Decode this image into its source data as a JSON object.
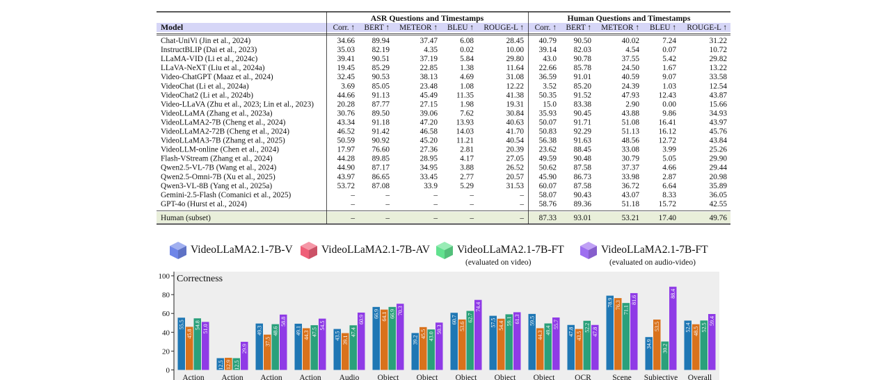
{
  "table": {
    "group_headers": [
      "ASR Questions and Timestamps",
      "Human Questions and Timestamps"
    ],
    "model_header": "Model",
    "metric_headers": [
      "Corr. ↑",
      "BERT ↑",
      "METEOR ↑",
      "BLEU ↑",
      "ROUGE-L ↑",
      "Corr. ↑",
      "BERT ↑",
      "METEOR ↑",
      "BLEU ↑",
      "ROUGE-L ↑"
    ],
    "rows": [
      {
        "model": "Chat-UniVi (Jin et al., 2024)",
        "values": [
          "34.66",
          "89.94",
          "37.47",
          "6.08",
          "28.45",
          "40.79",
          "90.50",
          "40.02",
          "7.24",
          "31.22"
        ]
      },
      {
        "model": "InstructBLIP (Dai et al., 2023)",
        "values": [
          "35.03",
          "82.19",
          "4.35",
          "0.02",
          "10.00",
          "39.14",
          "82.03",
          "4.54",
          "0.07",
          "10.72"
        ]
      },
      {
        "model": "LLaMA-VID (Li et al., 2024c)",
        "values": [
          "39.41",
          "90.51",
          "37.19",
          "5.84",
          "29.80",
          "43.0",
          "90.78",
          "37.55",
          "5.42",
          "29.82"
        ]
      },
      {
        "model": "LLaVA-NeXT (Liu et al., 2024a)",
        "values": [
          "19.45",
          "85.29",
          "22.85",
          "1.38",
          "11.64",
          "22.66",
          "85.78",
          "24.50",
          "1.67",
          "13.22"
        ]
      },
      {
        "model": "Video-ChatGPT (Maaz et al., 2024)",
        "values": [
          "32.45",
          "90.53",
          "38.13",
          "4.69",
          "31.08",
          "36.59",
          "91.01",
          "40.59",
          "9.07",
          "33.58"
        ]
      },
      {
        "model": "VideoChat (Li et al., 2024a)",
        "values": [
          "3.69",
          "85.05",
          "23.48",
          "1.08",
          "12.22",
          "3.52",
          "85.20",
          "24.39",
          "1.03",
          "12.54"
        ]
      },
      {
        "model": "VideoChat2 (Li et al., 2024b)",
        "values": [
          "44.66",
          "91.13",
          "45.49",
          "11.35",
          "41.38",
          "50.35",
          "91.52",
          "47.93",
          "12.43",
          "43.87"
        ]
      },
      {
        "model": "Video-LLaVA (Zhu et al., 2023; Lin et al., 2023)",
        "values": [
          "20.28",
          "87.77",
          "27.15",
          "1.98",
          "19.31",
          "15.0",
          "83.38",
          "2.90",
          "0.00",
          "15.66"
        ]
      },
      {
        "model": "VideoLLaMA (Zhang et al., 2023a)",
        "values": [
          "30.76",
          "89.50",
          "39.06",
          "7.62",
          "30.84",
          "35.93",
          "90.45",
          "43.88",
          "9.86",
          "34.93"
        ]
      },
      {
        "model": "VideoLLaMA2-7B (Cheng et al., 2024)",
        "values": [
          "43.34",
          "91.18",
          "47.20",
          "13.93",
          "40.63",
          "50.07",
          "91.71",
          "51.08",
          "16.41",
          "43.97"
        ]
      },
      {
        "model": "VideoLLaMA2-72B (Cheng et al., 2024)",
        "values": [
          "46.52",
          "91.42",
          "46.58",
          "14.03",
          "41.70",
          "50.83",
          "92.29",
          "51.13",
          "16.12",
          "45.76"
        ]
      },
      {
        "model": "VideoLLaMA3-7B (Zhang et al., 2025)",
        "values": [
          "50.59",
          "90.92",
          "45.20",
          "11.21",
          "40.54",
          "56.38",
          "91.63",
          "48.56",
          "12.72",
          "43.84"
        ]
      },
      {
        "model": "VideoLLM-online (Chen et al., 2024)",
        "values": [
          "17.97",
          "76.60",
          "27.36",
          "2.81",
          "20.39",
          "23.62",
          "88.45",
          "33.08",
          "3.99",
          "25.26"
        ]
      },
      {
        "model": "Flash-VStream (Zhang et al., 2024)",
        "values": [
          "44.28",
          "89.85",
          "28.95",
          "4.17",
          "27.05",
          "49.59",
          "90.48",
          "30.79",
          "5.05",
          "29.90"
        ]
      },
      {
        "model": "Qwen2.5-VL-7B (Wang et al., 2024)",
        "values": [
          "44.90",
          "87.17",
          "34.95",
          "3.88",
          "26.52",
          "50.62",
          "87.58",
          "37.37",
          "4.66",
          "29.44"
        ]
      },
      {
        "model": "Qwen2.5-Omni-7B (Xu et al., 2025)",
        "values": [
          "43.97",
          "86.65",
          "33.45",
          "2.77",
          "20.57",
          "45.90",
          "86.73",
          "33.98",
          "2.87",
          "20.98"
        ]
      },
      {
        "model": "Qwen3-VL-8B (Yang et al., 2025a)",
        "values": [
          "53.72",
          "87.08",
          "33.9",
          "5.29",
          "31.53",
          "60.07",
          "87.58",
          "36.72",
          "6.64",
          "35.89"
        ]
      },
      {
        "model": "Gemini-2.5-Flash (Comanici et al., 2025)",
        "values": [
          "–",
          "–",
          "–",
          "–",
          "–",
          "58.07",
          "90.43",
          "43.07",
          "8.33",
          "36.05"
        ]
      },
      {
        "model": "GPT-4o (Hurst et al., 2024)",
        "values": [
          "–",
          "–",
          "–",
          "–",
          "–",
          "58.76",
          "89.36",
          "51.18",
          "15.72",
          "42.55"
        ]
      }
    ],
    "human_row": {
      "model": "Human (subset)",
      "values": [
        "–",
        "–",
        "–",
        "–",
        "–",
        "87.33",
        "93.01",
        "53.21",
        "17.40",
        "49.76"
      ]
    },
    "colors": {
      "header_band": "#d6d6f7",
      "human_band": "#e9efda"
    }
  },
  "legend": [
    {
      "label": "VideoLLaMA2.1-7B-V",
      "sub": "",
      "color": "#6f86e8",
      "icon": "cube-icon"
    },
    {
      "label": "VideoLLaMA2.1-7B-AV",
      "sub": "",
      "color": "#ef5f78",
      "icon": "cube-icon"
    },
    {
      "label": "VideoLLaMA2.1-7B-FT",
      "sub": "(evaluated on video)",
      "color": "#62e18f",
      "icon": "cube-icon"
    },
    {
      "label": "VideoLLaMA2.1-7B-FT",
      "sub": "(evaluated on audio-video)",
      "color": "#9e6ff0",
      "icon": "cube-icon"
    }
  ],
  "chart_data": {
    "type": "bar",
    "title": "Correctness",
    "ylim": [
      0,
      100
    ],
    "yticks": [
      0,
      20,
      40,
      60,
      80,
      100
    ],
    "grid": false,
    "background": "#eeeeee",
    "categories": [
      "Action",
      "Action",
      "Action",
      "Action",
      "Audio",
      "Object",
      "Object",
      "Object",
      "Object",
      "Object",
      "OCR",
      "Scene",
      "Subjective",
      "Overall"
    ],
    "series": [
      {
        "color": "#1f77b4",
        "values": [
          55.5,
          12.5,
          49.3,
          49.1,
          43.5,
          66.9,
          39.2,
          60.7,
          57.5,
          59.5,
          47.8,
          78.9,
          34.9,
          52.4
        ]
      },
      {
        "color": "#d9721c",
        "values": [
          45.8,
          12.9,
          37.5,
          44.3,
          39.1,
          64.1,
          45.5,
          53.6,
          54.4,
          44.3,
          43.5,
          76.3,
          53.5,
          48.5
        ]
      },
      {
        "color": "#2aa07b",
        "values": [
          54.8,
          12.5,
          48.6,
          47.5,
          47.4,
          66.9,
          43.0,
          62.7,
          59.1,
          49.4,
          52.2,
          71.1,
          30.2,
          52.5
        ]
      },
      {
        "color": "#8f3be6",
        "values": [
          51.0,
          29.9,
          58.8,
          54.5,
          60.9,
          70.3,
          50.3,
          74.4,
          61.3,
          55.7,
          47.8,
          81.6,
          88.4,
          59.4
        ]
      }
    ],
    "value_labels": [
      [
        "55.5",
        "45.8",
        "54.8",
        "51.0"
      ],
      [
        "12.5",
        "12.9",
        "12.5",
        "29.9"
      ],
      [
        "49.3",
        "37.5",
        "48.6",
        "58.8"
      ],
      [
        "49.1",
        "44.3",
        "47.5",
        "54.5"
      ],
      [
        "43.5",
        "39.1",
        "47.4",
        "60.9"
      ],
      [
        "66.9",
        "64.1",
        "66.9",
        "70.3"
      ],
      [
        "39.2",
        "45.5",
        "43.0",
        "50.3"
      ],
      [
        "60.7",
        "53.6",
        "62.7",
        "74.4"
      ],
      [
        "57.5",
        "54.4",
        "59.1",
        "61.3"
      ],
      [
        "59.5",
        "44.3",
        "49.4",
        "55.7"
      ],
      [
        "47.8",
        "43.5",
        "52.2",
        "47.8"
      ],
      [
        "78.9",
        "76.3",
        "71.1",
        "81.6"
      ],
      [
        "34.9",
        "53.5",
        "30.2",
        "88.4"
      ],
      [
        "52.4",
        "48.5",
        "52.5",
        "59.4"
      ]
    ]
  }
}
